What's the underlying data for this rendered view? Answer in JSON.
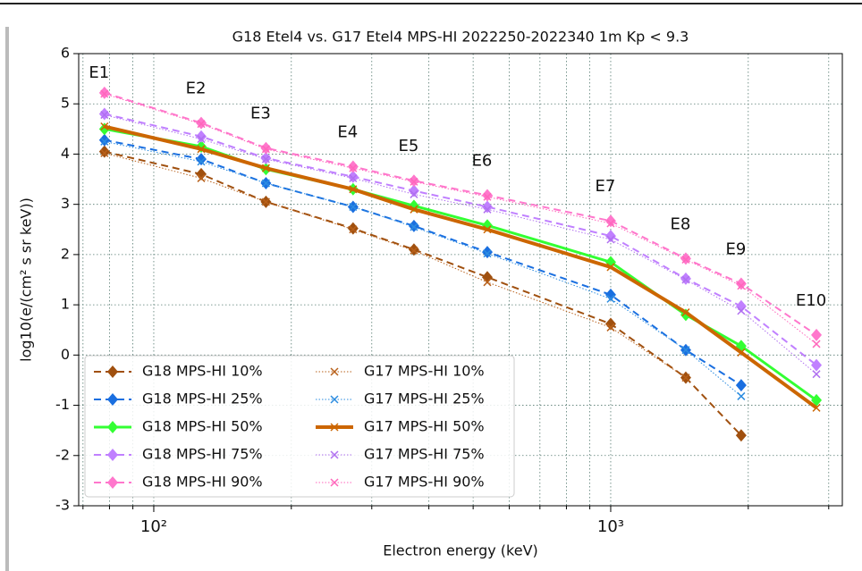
{
  "chart_data": {
    "type": "line",
    "title": "G18 Etel4 vs. G17 Etel4 MPS-HI 2022250-2022340 1m Kp < 9.3",
    "x_label": "Electron energy (keV)",
    "y_label": "log10(e/(cm² s  sr  keV))",
    "x_log": true,
    "grid": true,
    "legend_loc": "lower left",
    "x": [
      78,
      127,
      176,
      273,
      371,
      537,
      1000,
      1460,
      1930,
      2820
    ],
    "point_labels": [
      "E1",
      "E2",
      "E3",
      "E4",
      "E5",
      "E6",
      "E7",
      "E8",
      "E9",
      "E10"
    ],
    "xlim": [
      68.5,
      3213
    ],
    "ylim": [
      -3,
      6
    ],
    "xticks": [
      {
        "value": 100,
        "label": "10²"
      },
      {
        "value": 1000,
        "label": "10³"
      }
    ],
    "x_minor_ticks": [
      70,
      80,
      90,
      200,
      300,
      400,
      500,
      600,
      700,
      800,
      900,
      2000,
      3000
    ],
    "yticks": [
      -3,
      -2,
      -1,
      0,
      1,
      2,
      3,
      4,
      5,
      6
    ],
    "series": [
      {
        "name": "G18 MPS-HI 10%",
        "color": "#a0500f",
        "linestyle": "dashed",
        "marker": "diamond",
        "linewidth": 2,
        "values": [
          4.05,
          3.6,
          3.05,
          2.52,
          2.1,
          1.55,
          0.62,
          -0.45,
          -1.6,
          null
        ]
      },
      {
        "name": "G18 MPS-HI 25%",
        "color": "#1a6fe0",
        "linestyle": "dashed",
        "marker": "diamond",
        "linewidth": 2,
        "values": [
          4.28,
          3.9,
          3.42,
          2.95,
          2.57,
          2.05,
          1.2,
          0.1,
          -0.6,
          null
        ]
      },
      {
        "name": "G18 MPS-HI 50%",
        "color": "#33ff33",
        "linestyle": "solid",
        "marker": "diamond",
        "linewidth": 3,
        "values": [
          4.5,
          4.15,
          3.7,
          3.3,
          2.97,
          2.58,
          1.85,
          0.8,
          0.18,
          -0.9
        ]
      },
      {
        "name": "G18 MPS-HI 75%",
        "color": "#c080ff",
        "linestyle": "dashed",
        "marker": "diamond",
        "linewidth": 2,
        "values": [
          4.8,
          4.35,
          3.92,
          3.55,
          3.27,
          2.95,
          2.37,
          1.52,
          0.97,
          -0.2
        ]
      },
      {
        "name": "G18 MPS-HI 90%",
        "color": "#ff77cc",
        "linestyle": "dashed",
        "marker": "diamond",
        "linewidth": 2,
        "values": [
          5.22,
          4.62,
          4.12,
          3.75,
          3.47,
          3.18,
          2.67,
          1.92,
          1.42,
          0.4
        ]
      },
      {
        "name": "G17 MPS-HI 10%",
        "color": "#b8601a",
        "linestyle": "dotted",
        "marker": "x",
        "linewidth": 1,
        "values": [
          4.02,
          3.52,
          3.05,
          2.5,
          2.08,
          1.45,
          0.55,
          -0.45,
          null,
          null
        ]
      },
      {
        "name": "G17 MPS-HI 25%",
        "color": "#2b8ce0",
        "linestyle": "dotted",
        "marker": "x",
        "linewidth": 1,
        "values": [
          4.25,
          3.85,
          3.42,
          2.95,
          2.55,
          2.02,
          1.12,
          0.1,
          -0.82,
          null
        ]
      },
      {
        "name": "G17 MPS-HI 50%",
        "color": "#cc6600",
        "linestyle": "solid",
        "marker": "x",
        "linewidth": 4,
        "values": [
          4.55,
          4.1,
          3.72,
          3.3,
          2.9,
          2.5,
          1.75,
          0.85,
          0.05,
          -1.05
        ]
      },
      {
        "name": "G17 MPS-HI 75%",
        "color": "#b070f0",
        "linestyle": "dotted",
        "marker": "x",
        "linewidth": 1,
        "values": [
          4.78,
          4.3,
          3.9,
          3.52,
          3.2,
          2.9,
          2.3,
          1.5,
          0.88,
          -0.38
        ]
      },
      {
        "name": "G17 MPS-HI 90%",
        "color": "#ff66bb",
        "linestyle": "dotted",
        "marker": "x",
        "linewidth": 1,
        "values": [
          5.2,
          4.6,
          4.1,
          3.72,
          3.45,
          3.15,
          2.62,
          1.9,
          1.38,
          0.22
        ]
      }
    ]
  }
}
